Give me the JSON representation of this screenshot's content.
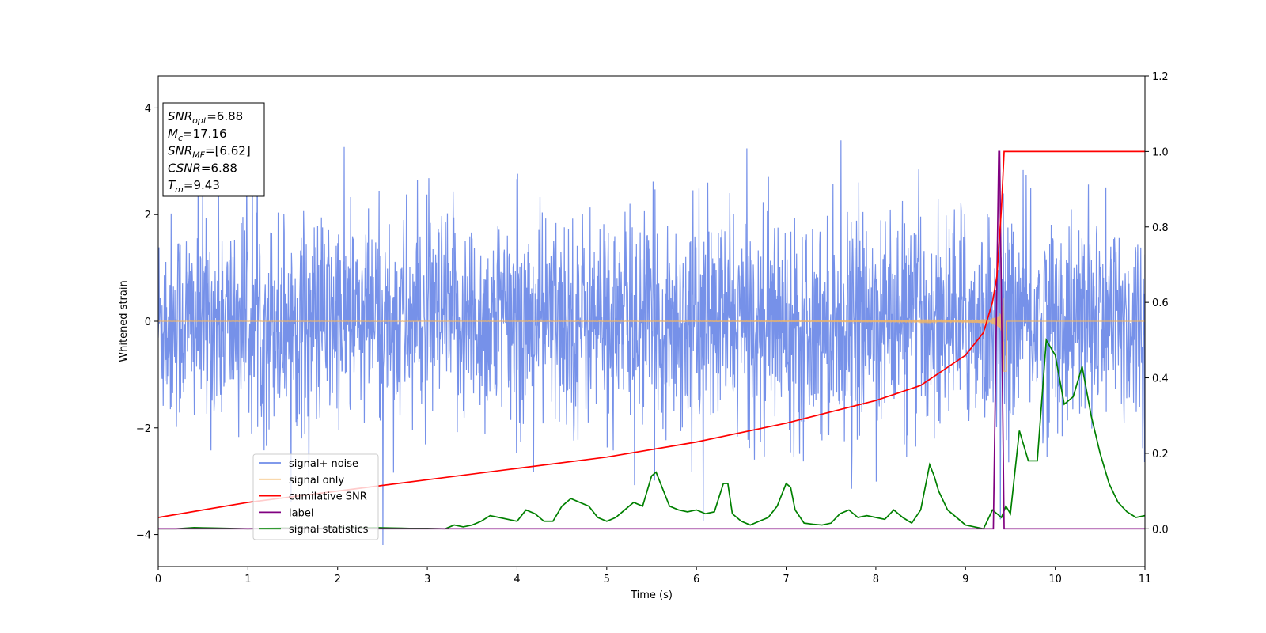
{
  "chart_data": {
    "type": "line",
    "xlabel": "Time (s)",
    "ylabel": "Whitened strain",
    "xlim": [
      0,
      11
    ],
    "ylim_left": [
      -4.6,
      4.6
    ],
    "ylim_right": [
      -0.1,
      1.2
    ],
    "xticks": [
      "0",
      "1",
      "2",
      "3",
      "4",
      "5",
      "6",
      "7",
      "8",
      "9",
      "10",
      "11"
    ],
    "yticks_left": [
      "−4",
      "−2",
      "0",
      "2",
      "4"
    ],
    "yticks_right": [
      "0.0",
      "0.2",
      "0.4",
      "0.6",
      "0.8",
      "1.0",
      "1.2"
    ],
    "annotation": {
      "lines": [
        {
          "sym": "SNR",
          "sub": "opt",
          "val": "=6.88"
        },
        {
          "sym": "M",
          "sub": "c",
          "val": "=17.16"
        },
        {
          "sym": "SNR",
          "sub": "MF",
          "val": "=[6.62]"
        },
        {
          "sym": "CSNR",
          "sub": "",
          "val": "=6.88"
        },
        {
          "sym": "T",
          "sub": "m",
          "val": "=9.43"
        }
      ]
    },
    "legend_position": "lower-left",
    "series": [
      {
        "name": "signal+ noise",
        "color": "#6f8be8",
        "axis": "left",
        "noise_std": 1.05,
        "typical_range": [
          -2.5,
          2.7
        ],
        "extreme_range": [
          -4.2,
          4.15
        ]
      },
      {
        "name": "signal only",
        "color": "#f5b560",
        "axis": "left",
        "merger_time": 9.43,
        "peak_amplitude": 1.3
      },
      {
        "name": "cumilative SNR",
        "color": "#ff0000",
        "axis": "right",
        "x": [
          0,
          1,
          2,
          3,
          4,
          5,
          6,
          7,
          8,
          8.5,
          9,
          9.2,
          9.3,
          9.35,
          9.4,
          9.43,
          11
        ],
        "y": [
          0.03,
          0.07,
          0.1,
          0.13,
          0.16,
          0.19,
          0.23,
          0.28,
          0.34,
          0.38,
          0.46,
          0.52,
          0.6,
          0.67,
          0.85,
          1.0,
          1.0
        ]
      },
      {
        "name": "label",
        "color": "#800080",
        "axis": "right",
        "x": [
          0,
          9.31,
          9.37,
          9.38,
          9.43,
          9.44,
          11
        ],
        "y": [
          0.0,
          0.0,
          1.0,
          1.0,
          0.0,
          0.0,
          0.0
        ]
      },
      {
        "name": "signal statistics",
        "color": "#008000",
        "axis": "right",
        "x": [
          0,
          0.2,
          0.4,
          0.6,
          0.8,
          1.0,
          1.2,
          1.4,
          1.6,
          1.8,
          2.0,
          2.2,
          2.4,
          2.6,
          2.8,
          3.0,
          3.2,
          3.3,
          3.4,
          3.5,
          3.6,
          3.7,
          3.8,
          4.0,
          4.1,
          4.2,
          4.3,
          4.4,
          4.5,
          4.6,
          4.7,
          4.8,
          4.9,
          5.0,
          5.1,
          5.2,
          5.3,
          5.4,
          5.5,
          5.55,
          5.6,
          5.7,
          5.8,
          5.9,
          6.0,
          6.1,
          6.2,
          6.3,
          6.35,
          6.4,
          6.5,
          6.6,
          6.7,
          6.8,
          6.9,
          7.0,
          7.05,
          7.1,
          7.2,
          7.3,
          7.4,
          7.5,
          7.6,
          7.7,
          7.8,
          7.9,
          8.0,
          8.1,
          8.2,
          8.3,
          8.4,
          8.5,
          8.6,
          8.65,
          8.7,
          8.8,
          9.0,
          9.2,
          9.3,
          9.35,
          9.4,
          9.45,
          9.5,
          9.6,
          9.7,
          9.8,
          9.9,
          9.95,
          10.0,
          10.1,
          10.2,
          10.3,
          10.4,
          10.5,
          10.6,
          10.7,
          10.8,
          10.9,
          11.0
        ],
        "y": [
          0.0,
          0.0,
          0.003,
          0.002,
          0.001,
          0.0,
          0.001,
          0.002,
          0.001,
          0.001,
          0.002,
          0.002,
          0.003,
          0.002,
          0.001,
          0.001,
          0.0,
          0.01,
          0.005,
          0.01,
          0.02,
          0.035,
          0.03,
          0.02,
          0.05,
          0.04,
          0.02,
          0.02,
          0.06,
          0.08,
          0.07,
          0.06,
          0.03,
          0.02,
          0.03,
          0.05,
          0.07,
          0.06,
          0.14,
          0.15,
          0.12,
          0.06,
          0.05,
          0.045,
          0.05,
          0.04,
          0.045,
          0.12,
          0.12,
          0.04,
          0.02,
          0.01,
          0.02,
          0.03,
          0.06,
          0.12,
          0.11,
          0.05,
          0.015,
          0.012,
          0.01,
          0.015,
          0.04,
          0.05,
          0.03,
          0.035,
          0.03,
          0.025,
          0.05,
          0.03,
          0.015,
          0.05,
          0.17,
          0.14,
          0.1,
          0.05,
          0.01,
          0.0,
          0.05,
          0.04,
          0.03,
          0.06,
          0.04,
          0.26,
          0.18,
          0.18,
          0.5,
          0.48,
          0.46,
          0.33,
          0.35,
          0.43,
          0.3,
          0.2,
          0.12,
          0.07,
          0.045,
          0.03,
          0.035
        ]
      }
    ]
  }
}
